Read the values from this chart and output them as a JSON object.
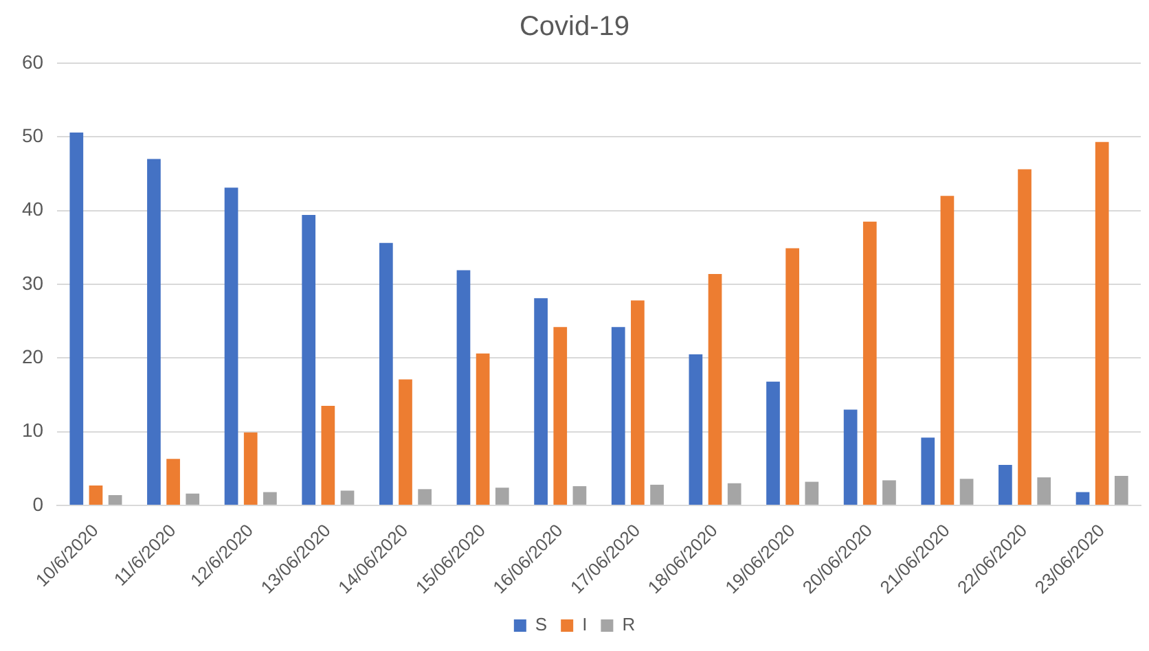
{
  "chart_data": {
    "type": "bar",
    "title": "Covid-19",
    "categories": [
      "10/6/2020",
      "11/6/2020",
      "12/6/2020",
      "13/06/2020",
      "14/06/2020",
      "15/06/2020",
      "16/06/2020",
      "17/06/2020",
      "18/06/2020",
      "19/06/2020",
      "20/06/2020",
      "21/06/2020",
      "22/06/2020",
      "23/06/2020"
    ],
    "series": [
      {
        "name": "S",
        "color": "#4472c4",
        "values": [
          50.6,
          47,
          43.1,
          39.4,
          35.6,
          31.9,
          28.1,
          24.2,
          20.5,
          16.8,
          13,
          9.2,
          5.5,
          1.8
        ]
      },
      {
        "name": "I",
        "color": "#ed7d31",
        "values": [
          2.7,
          6.3,
          9.9,
          13.5,
          17.1,
          20.6,
          24.2,
          27.8,
          31.4,
          34.9,
          38.5,
          42,
          45.6,
          49.3
        ]
      },
      {
        "name": "R",
        "color": "#a5a5a5",
        "values": [
          1.4,
          1.6,
          1.8,
          2,
          2.2,
          2.4,
          2.6,
          2.8,
          3,
          3.2,
          3.4,
          3.6,
          3.8,
          4
        ]
      }
    ],
    "ylim": [
      0,
      60
    ],
    "yticks": [
      0,
      10,
      20,
      30,
      40,
      50,
      60
    ],
    "grid": "y",
    "legend": "bottom"
  }
}
